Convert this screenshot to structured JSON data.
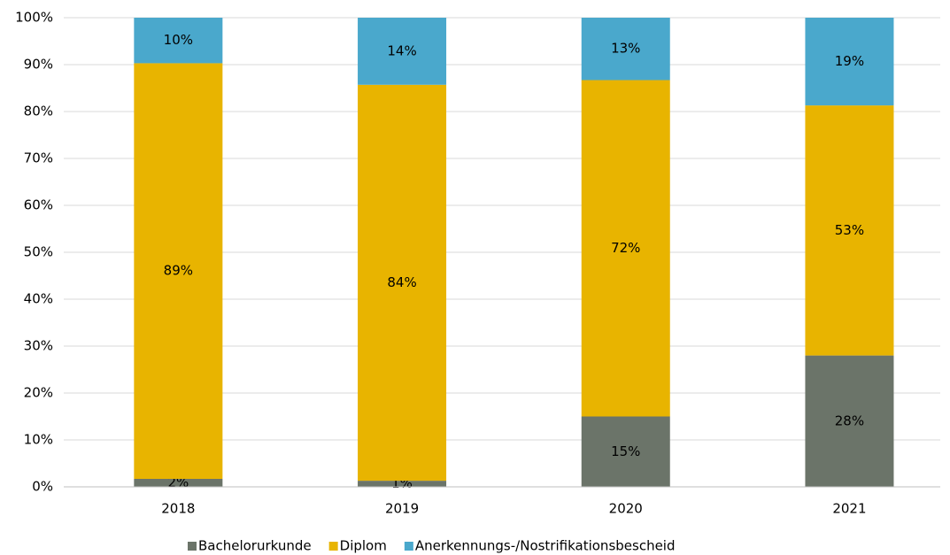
{
  "chart_data": {
    "type": "stacked_bar",
    "categories": [
      "2018",
      "2019",
      "2020",
      "2021"
    ],
    "series": [
      {
        "name": "Bachelorurkunde",
        "color": "#6b7469",
        "values": [
          1.7,
          1.3,
          15,
          28
        ],
        "value_labels": [
          "2%",
          "1%",
          "15%",
          "28%"
        ]
      },
      {
        "name": "Diplom",
        "color": "#e8b400",
        "values": [
          88.6,
          84.4,
          71.7,
          53.3
        ],
        "value_labels": [
          "89%",
          "84%",
          "72%",
          "53%"
        ]
      },
      {
        "name": "Anerkennungs-/Nostrifikationsbescheid",
        "color": "#4aa8cc",
        "values": [
          9.7,
          14.3,
          13.3,
          18.7
        ],
        "value_labels": [
          "10%",
          "14%",
          "13%",
          "19%"
        ]
      }
    ],
    "ylim": [
      0,
      100
    ],
    "yticks": [
      {
        "value": 0,
        "label": "0%"
      },
      {
        "value": 10,
        "label": "10%"
      },
      {
        "value": 20,
        "label": "20%"
      },
      {
        "value": 30,
        "label": "30%"
      },
      {
        "value": 40,
        "label": "40%"
      },
      {
        "value": 50,
        "label": "50%"
      },
      {
        "value": 60,
        "label": "60%"
      },
      {
        "value": 70,
        "label": "70%"
      },
      {
        "value": 80,
        "label": "80%"
      },
      {
        "value": 90,
        "label": "90%"
      },
      {
        "value": 100,
        "label": "100%"
      }
    ],
    "grid": true,
    "legend": "bottom"
  }
}
